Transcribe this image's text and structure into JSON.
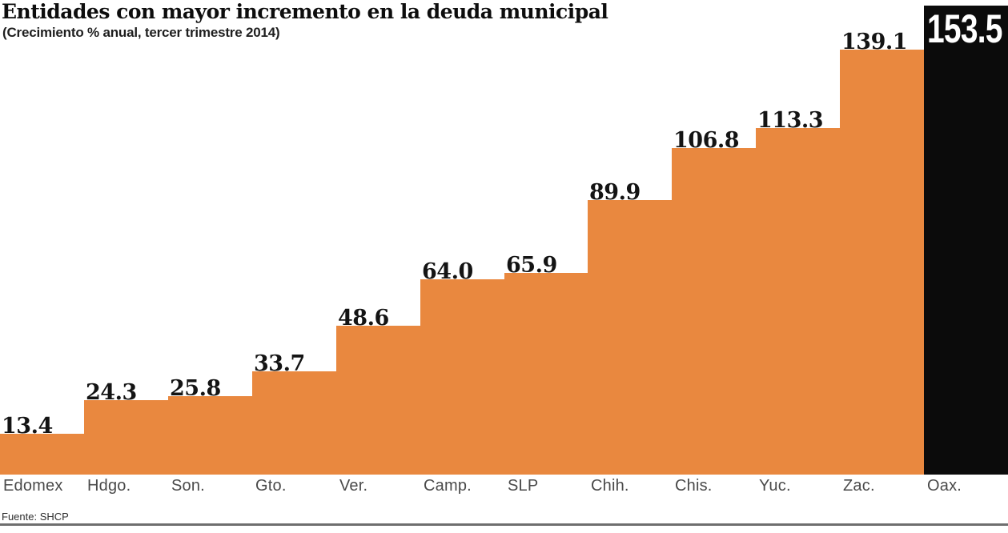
{
  "chart_data": {
    "type": "bar",
    "title": "Entidades con mayor incremento en la deuda municipal",
    "subtitle": "(Crecimiento % anual, tercer trimestre 2014)",
    "source": "Fuente: SHCP",
    "categories": [
      "Edomex",
      "Hdgo.",
      "Son.",
      "Gto.",
      "Ver.",
      "Camp.",
      "SLP",
      "Chih.",
      "Chis.",
      "Yuc.",
      "Zac.",
      "Oax."
    ],
    "values": [
      13.4,
      24.3,
      25.8,
      33.7,
      48.6,
      64.0,
      65.9,
      89.9,
      106.8,
      113.3,
      139.1,
      153.5
    ],
    "value_labels": [
      "13.4",
      "24.3",
      "25.8",
      "33.7",
      "48.6",
      "64.0",
      "65.9",
      "89.9",
      "106.8",
      "113.3",
      "139.1",
      "153.5"
    ],
    "highlight_index": 11,
    "highlight_category": "Oax.",
    "ylim": [
      0,
      153.5
    ],
    "xlabel": "",
    "ylabel": "",
    "grid": "off",
    "legend": "none",
    "colors": {
      "bar": "#E9883F",
      "highlight_bar": "#0B0B0B",
      "value_label": "#141414",
      "value_label_inside": "#FFFFFF",
      "axis_label": "#4A4A4A",
      "title": "#0D0D0D",
      "rule": "#6E6E6E",
      "background": "#FFFFFF"
    }
  }
}
